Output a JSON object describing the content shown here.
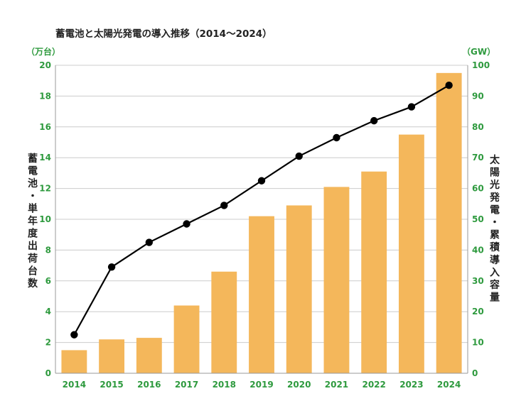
{
  "chart_data": {
    "type": "bar",
    "title": "蓄電池と太陽光発電の導入推移（2014〜2024）",
    "categories": [
      "2014",
      "2015",
      "2016",
      "2017",
      "2018",
      "2019",
      "2020",
      "2021",
      "2022",
      "2023",
      "2024"
    ],
    "left_axis": {
      "unit": "（万台）",
      "label": "蓄電池・単年度出荷台数",
      "ylim": [
        0,
        20
      ],
      "ticks": [
        "0",
        "2",
        "4",
        "6",
        "8",
        "10",
        "12",
        "14",
        "16",
        "18",
        "20"
      ]
    },
    "right_axis": {
      "unit": "（GW）",
      "label": "太陽光発電・累積導入容量",
      "ylim": [
        0,
        100
      ],
      "ticks": [
        "0",
        "10",
        "20",
        "30",
        "40",
        "50",
        "60",
        "70",
        "80",
        "90",
        "100"
      ]
    },
    "series": [
      {
        "type": "bar",
        "axis": "left",
        "values": [
          1.5,
          2.2,
          2.3,
          4.4,
          6.6,
          10.2,
          10.9,
          12.1,
          13.1,
          15.5,
          19.5
        ]
      },
      {
        "type": "line",
        "axis": "right",
        "values": [
          12.5,
          34.5,
          42.5,
          48.5,
          54.5,
          62.5,
          70.5,
          76.5,
          82,
          86.5,
          93.5
        ]
      }
    ],
    "colors": {
      "bar": "#f4b75b",
      "line": "#000000",
      "axis_text": "#2e9a3e",
      "grid": "#cccccc",
      "axis": "#999999"
    },
    "grid": true,
    "legend": "none"
  }
}
